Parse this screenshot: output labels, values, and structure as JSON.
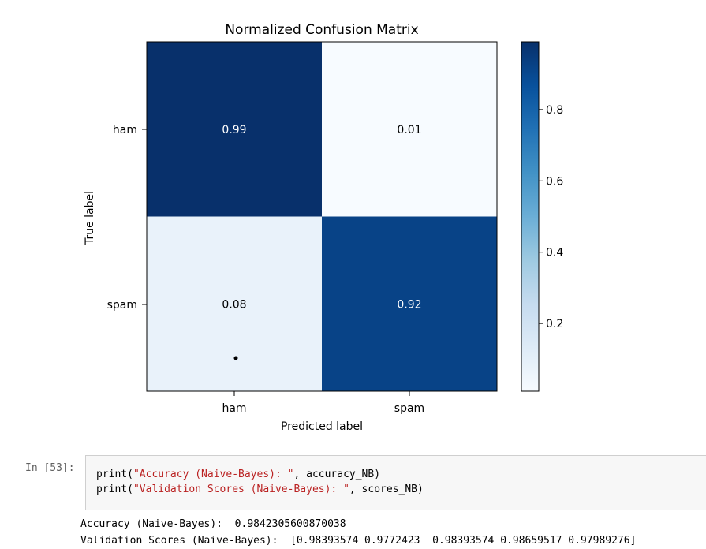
{
  "chart_data": {
    "type": "heatmap",
    "title": "Normalized Confusion Matrix",
    "xlabel": "Predicted label",
    "ylabel": "True label",
    "x_categories": [
      "ham",
      "spam"
    ],
    "y_categories": [
      "ham",
      "spam"
    ],
    "values": [
      [
        0.99,
        0.01
      ],
      [
        0.08,
        0.92
      ]
    ],
    "value_labels": [
      [
        "0.99",
        "0.01"
      ],
      [
        "0.08",
        "0.92"
      ]
    ],
    "colormap": "Blues",
    "color_min": 0.01,
    "color_max": 0.99,
    "colorbar_ticks": [
      0.2,
      0.4,
      0.6,
      0.8
    ],
    "colorbar_tick_labels": [
      "0.2",
      "0.4",
      "0.6",
      "0.8"
    ]
  },
  "notebook": {
    "prompt": "In [53]:",
    "code_lines": [
      {
        "fn": "print(",
        "str": "\"Accuracy (Naive-Bayes): \"",
        "rest": ", accuracy_NB)"
      },
      {
        "fn": "print(",
        "str": "\"Validation Scores (Naive-Bayes): \"",
        "rest": ", scores_NB)"
      }
    ],
    "output_lines": [
      "Accuracy (Naive-Bayes):  0.9842305600870038",
      "Validation Scores (Naive-Bayes):  [0.98393574 0.9772423  0.98393574 0.98659517 0.97989276]"
    ]
  }
}
